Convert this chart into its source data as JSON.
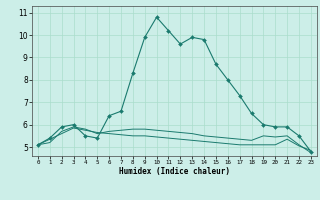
{
  "xlabel": "Humidex (Indice chaleur)",
  "background_color": "#cceee8",
  "grid_color": "#aaddcc",
  "line_color": "#1a7a6e",
  "xlim": [
    -0.5,
    23.5
  ],
  "ylim": [
    4.6,
    11.3
  ],
  "xticks": [
    0,
    1,
    2,
    3,
    4,
    5,
    6,
    7,
    8,
    9,
    10,
    11,
    12,
    13,
    14,
    15,
    16,
    17,
    18,
    19,
    20,
    21,
    22,
    23
  ],
  "yticks": [
    5,
    6,
    7,
    8,
    9,
    10,
    11
  ],
  "series": [
    {
      "x": [
        0,
        1,
        2,
        3,
        4,
        5,
        6,
        7,
        8,
        9,
        10,
        11,
        12,
        13,
        14,
        15,
        16,
        17,
        18,
        19,
        20,
        21,
        22,
        23
      ],
      "y": [
        5.1,
        5.4,
        5.9,
        6.0,
        5.5,
        5.4,
        6.4,
        6.6,
        8.3,
        9.9,
        10.8,
        10.2,
        9.6,
        9.9,
        9.8,
        8.7,
        8.0,
        7.3,
        6.5,
        6.0,
        5.9,
        5.9,
        5.5,
        4.8
      ],
      "marker": true
    },
    {
      "x": [
        0,
        1,
        2,
        3,
        4,
        5,
        6,
        7,
        8,
        9,
        10,
        11,
        12,
        13,
        14,
        15,
        16,
        17,
        18,
        19,
        20,
        21,
        22,
        23
      ],
      "y": [
        5.1,
        5.35,
        5.6,
        5.85,
        5.75,
        5.65,
        5.6,
        5.55,
        5.5,
        5.5,
        5.45,
        5.4,
        5.35,
        5.3,
        5.25,
        5.2,
        5.15,
        5.1,
        5.1,
        5.1,
        5.1,
        5.35,
        5.05,
        4.85
      ],
      "marker": false
    },
    {
      "x": [
        0,
        1,
        2,
        3,
        4,
        5,
        6,
        7,
        8,
        9,
        10,
        11,
        12,
        13,
        14,
        15,
        16,
        17,
        18,
        19,
        20,
        21,
        22,
        23
      ],
      "y": [
        5.1,
        5.2,
        5.7,
        5.9,
        5.8,
        5.6,
        5.7,
        5.75,
        5.8,
        5.8,
        5.75,
        5.7,
        5.65,
        5.6,
        5.5,
        5.45,
        5.4,
        5.35,
        5.3,
        5.5,
        5.45,
        5.5,
        5.1,
        4.75
      ],
      "marker": false
    }
  ]
}
